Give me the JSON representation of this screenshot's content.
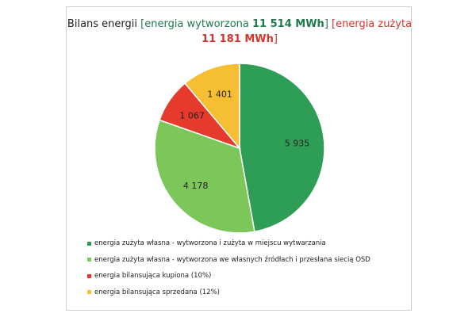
{
  "chart_data": {
    "type": "pie",
    "title": {
      "prefix": "Bilans energii ",
      "produced_text": "[energia wytworzona ",
      "produced_value": "11 514 MWh",
      "produced_close": "]",
      "consumed_text": " [energia zużyta ",
      "consumed_value": "11 181 MWh",
      "consumed_close": "]"
    },
    "slices": [
      {
        "label": "energia zużyta własna - wytworzona i zużyta w miejscu wytwarzania",
        "value": 5935,
        "display": "5 935",
        "color": "#2e9e57"
      },
      {
        "label": "energia zużyta własna - wytworzona we własnych źródłach i przesłana siecią OSD",
        "value": 4178,
        "display": "4 178",
        "color": "#7cc65a"
      },
      {
        "label": "energia bilansująca kupiona (10%)",
        "value": 1067,
        "display": "1 067",
        "color": "#e63a2c"
      },
      {
        "label": "energia bilansująca sprzedana (12%)",
        "value": 1401,
        "display": "1 401",
        "color": "#f6bf33"
      }
    ],
    "start_angle_deg": 0,
    "direction": "clockwise",
    "legend_position": "bottom"
  }
}
